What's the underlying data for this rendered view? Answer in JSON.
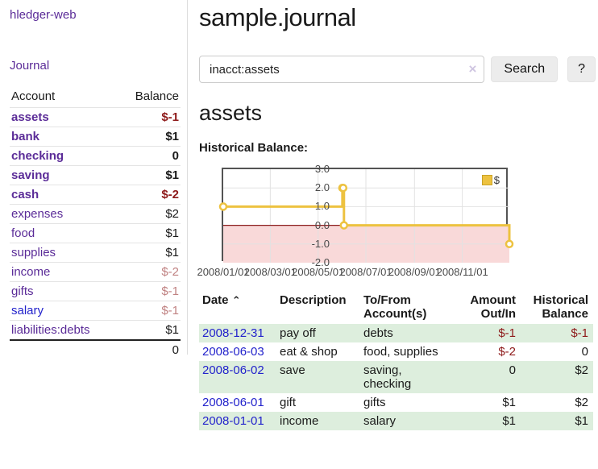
{
  "app": {
    "brand": "hledger-web",
    "nav_journal": "Journal"
  },
  "colors": {
    "purple_link": "#5b2c98",
    "blue_link": "#2323cc",
    "negative_strong": "#8e1a1a",
    "negative_faded": "#c08282",
    "row_stripe_green": "#ddeedd",
    "chart_series_gold": "#edc240",
    "chart_negative_region_pink": "#f9d9d9",
    "chart_zero_line_red": "#8b1d1d"
  },
  "sidebar": {
    "headers": {
      "account": "Account",
      "balance": "Balance"
    },
    "rows": [
      {
        "account": "assets",
        "level": 1,
        "bold": true,
        "balance": "$-1",
        "balance_style": "neg"
      },
      {
        "account": "bank",
        "level": 2,
        "bold": true,
        "balance": "$1",
        "balance_style": "pos"
      },
      {
        "account": "checking",
        "level": 3,
        "bold": true,
        "balance": "0",
        "balance_style": "pos"
      },
      {
        "account": "saving",
        "level": 3,
        "bold": true,
        "balance": "$1",
        "balance_style": "pos"
      },
      {
        "account": "cash",
        "level": 2,
        "bold": true,
        "balance": "$-2",
        "balance_style": "neg"
      },
      {
        "account": "expenses",
        "level": 1,
        "bold": false,
        "balance": "$2",
        "balance_style": "pos"
      },
      {
        "account": "food",
        "level": 2,
        "bold": false,
        "balance": "$1",
        "balance_style": "pos"
      },
      {
        "account": "supplies",
        "level": 2,
        "bold": false,
        "balance": "$1",
        "balance_style": "pos"
      },
      {
        "account": "income",
        "level": 1,
        "bold": false,
        "balance": "$-2",
        "balance_style": "negf"
      },
      {
        "account": "gifts",
        "level": 2,
        "bold": false,
        "balance": "$-1",
        "balance_style": "negf"
      },
      {
        "account": "salary",
        "level": 2,
        "bold": false,
        "link_color": "blue",
        "balance": "$-1",
        "balance_style": "negf"
      },
      {
        "account": "liabilities:debts",
        "level": 1,
        "bold": false,
        "balance": "$1",
        "balance_style": "pos"
      }
    ],
    "total": "0"
  },
  "header": {
    "title": "sample.journal"
  },
  "search": {
    "value": "inacct:assets",
    "clear_glyph": "×",
    "button_label": "Search",
    "help_label": "?"
  },
  "account_page": {
    "heading": "assets",
    "chart_label": "Historical Balance:"
  },
  "chart_data": {
    "type": "line",
    "subtype": "step",
    "series": [
      {
        "name": "$",
        "points": [
          [
            "2008-01-01",
            1
          ],
          [
            "2008-06-01",
            2
          ],
          [
            "2008-06-02",
            2
          ],
          [
            "2008-06-03",
            0
          ],
          [
            "2008-12-31",
            -1
          ]
        ]
      }
    ],
    "x_ticks": [
      "2008/01/01",
      "2008/03/01",
      "2008/05/01",
      "2008/07/01",
      "2008/09/01",
      "2008/11/01"
    ],
    "x_range": [
      "2008-01-01",
      "2008-12-31"
    ],
    "y_ticks": [
      3.0,
      2.0,
      1.0,
      0.0,
      -1.0,
      -2.0
    ],
    "ylim": [
      -2,
      3
    ],
    "grid": true,
    "legend_position": "top-right",
    "legend_label": "$",
    "negative_region_shaded": true
  },
  "register": {
    "sort_glyph": "⌃",
    "headers": {
      "date": "Date",
      "description": "Description",
      "accounts": "To/From Account(s)",
      "amount": "Amount Out/In",
      "balance": "Historical Balance"
    },
    "rows": [
      {
        "date": "2008-12-31",
        "description": "pay off",
        "accounts": "debts",
        "amount": "$-1",
        "amount_style": "neg",
        "balance": "$-1",
        "balance_style": "neg",
        "stripe": true
      },
      {
        "date": "2008-06-03",
        "description": "eat & shop",
        "accounts": "food, supplies",
        "amount": "$-2",
        "amount_style": "neg",
        "balance": "0",
        "balance_style": "pos",
        "stripe": false
      },
      {
        "date": "2008-06-02",
        "description": "save",
        "accounts": "saving, checking",
        "amount": "0",
        "amount_style": "pos",
        "balance": "$2",
        "balance_style": "pos",
        "stripe": true
      },
      {
        "date": "2008-06-01",
        "description": "gift",
        "accounts": "gifts",
        "amount": "$1",
        "amount_style": "pos",
        "balance": "$2",
        "balance_style": "pos",
        "stripe": false
      },
      {
        "date": "2008-01-01",
        "description": "income",
        "accounts": "salary",
        "amount": "$1",
        "amount_style": "pos",
        "balance": "$1",
        "balance_style": "pos",
        "stripe": true
      }
    ]
  }
}
